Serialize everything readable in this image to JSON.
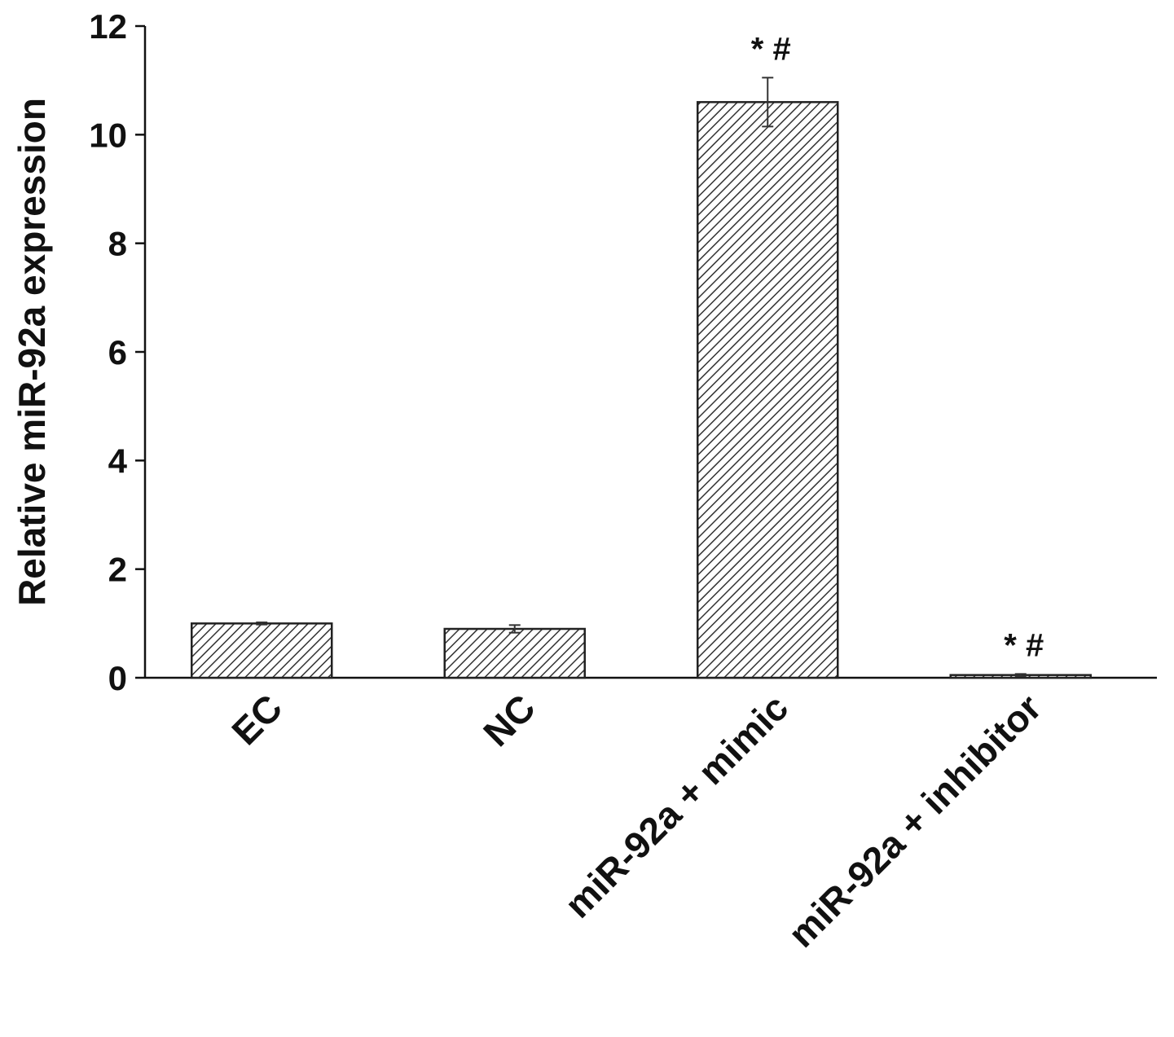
{
  "chart_data": {
    "type": "bar",
    "title": "",
    "xlabel": "",
    "ylabel": "Relative  miR-92a expression",
    "categories": [
      "EC",
      "NC",
      "miR-92a + mimic",
      "miR-92a + inhibitor"
    ],
    "values": [
      1.0,
      0.9,
      10.6,
      0.05
    ],
    "error": [
      0.02,
      0.07,
      0.45,
      0.02
    ],
    "annotations": [
      "",
      "",
      "* #",
      "* #"
    ],
    "ylim": [
      0,
      12
    ],
    "yticks": [
      "0",
      "2",
      "4",
      "6",
      "8",
      "10",
      "12"
    ],
    "grid": false,
    "legend": "none",
    "bar_fill": "hatched",
    "colors": {
      "bar_stroke": "#222222",
      "hatch": "#333333",
      "axis": "#111111",
      "background": "#ffffff"
    }
  }
}
